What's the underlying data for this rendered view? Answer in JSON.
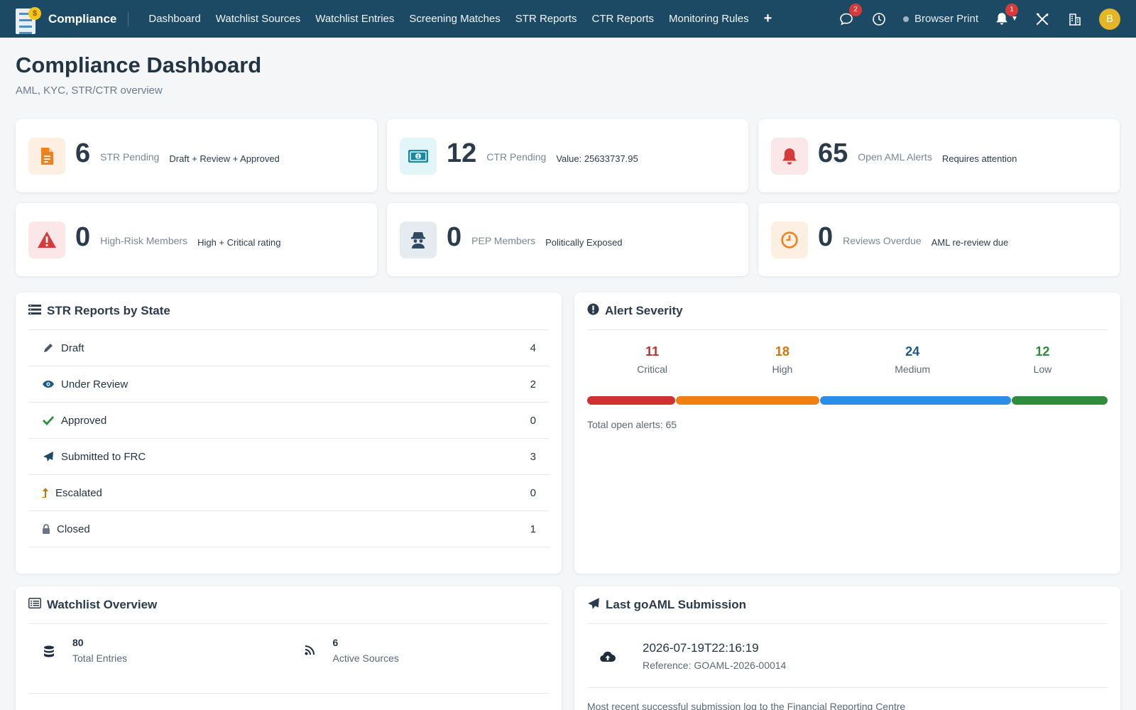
{
  "app": {
    "name": "Compliance"
  },
  "nav": {
    "links": [
      "Dashboard",
      "Watchlist Sources",
      "Watchlist Entries",
      "Screening Matches",
      "STR Reports",
      "CTR Reports",
      "Monitoring Rules"
    ],
    "chat_badge": "2",
    "notif_badge": "1",
    "print_label": "Browser Print",
    "avatar_initial": "B"
  },
  "header": {
    "title": "Compliance Dashboard",
    "subtitle": "AML, KYC, STR/CTR overview"
  },
  "stats": [
    {
      "value": "6",
      "label": "STR Pending",
      "desc": "Draft + Review + Approved",
      "icon": "file-icon",
      "color": "#f0821e",
      "bg": "#fdf0e3"
    },
    {
      "value": "12",
      "label": "CTR Pending",
      "desc": "Value: 25633737.95",
      "icon": "money-icon",
      "color": "#1a8aa0",
      "bg": "#e2f5f8"
    },
    {
      "value": "65",
      "label": "Open AML Alerts",
      "desc": "Requires attention",
      "icon": "bell-icon",
      "color": "#d63a3a",
      "bg": "#fbe7e7"
    },
    {
      "value": "0",
      "label": "High-Risk Members",
      "desc": "High + Critical rating",
      "icon": "warning-icon",
      "color": "#d63a3a",
      "bg": "#fbe7e7"
    },
    {
      "value": "0",
      "label": "PEP Members",
      "desc": "Politically Exposed",
      "icon": "spy-icon",
      "color": "#2f4a63",
      "bg": "#e6ebf0"
    },
    {
      "value": "0",
      "label": "Reviews Overdue",
      "desc": "AML re-review due",
      "icon": "clock-icon",
      "color": "#f0821e",
      "bg": "#fdf0e3"
    }
  ],
  "str_panel": {
    "title": "STR Reports by State",
    "rows": [
      {
        "label": "Draft",
        "count": "4",
        "icon": "pencil-icon"
      },
      {
        "label": "Under Review",
        "count": "2",
        "icon": "eye-icon"
      },
      {
        "label": "Approved",
        "count": "0",
        "icon": "check-icon"
      },
      {
        "label": "Submitted to FRC",
        "count": "3",
        "icon": "send-icon"
      },
      {
        "label": "Escalated",
        "count": "0",
        "icon": "arrow-up-icon"
      },
      {
        "label": "Closed",
        "count": "1",
        "icon": "lock-icon"
      }
    ]
  },
  "severity_panel": {
    "title": "Alert Severity",
    "levels": [
      {
        "label": "Critical",
        "value": 11,
        "value_text": "11",
        "color": "#d0302f"
      },
      {
        "label": "High",
        "value": 18,
        "value_text": "18",
        "color": "#f07f12"
      },
      {
        "label": "Medium",
        "value": 24,
        "value_text": "24",
        "color": "#2a8ee8"
      },
      {
        "label": "Low",
        "value": 12,
        "value_text": "12",
        "color": "#2e8c3a"
      }
    ],
    "total_label": "Total open alerts: 65"
  },
  "watchlist_panel": {
    "title": "Watchlist Overview",
    "items": [
      {
        "value": "80",
        "label": "Total Entries",
        "icon": "database-icon"
      },
      {
        "value": "6",
        "label": "Active Sources",
        "icon": "rss-icon"
      }
    ]
  },
  "goaml_panel": {
    "title": "Last goAML Submission",
    "date": "2026-07-19T22:16:19",
    "reference": "Reference: GOAML-2026-00014",
    "note": "Most recent successful submission log to the Financial Reporting Centre"
  }
}
